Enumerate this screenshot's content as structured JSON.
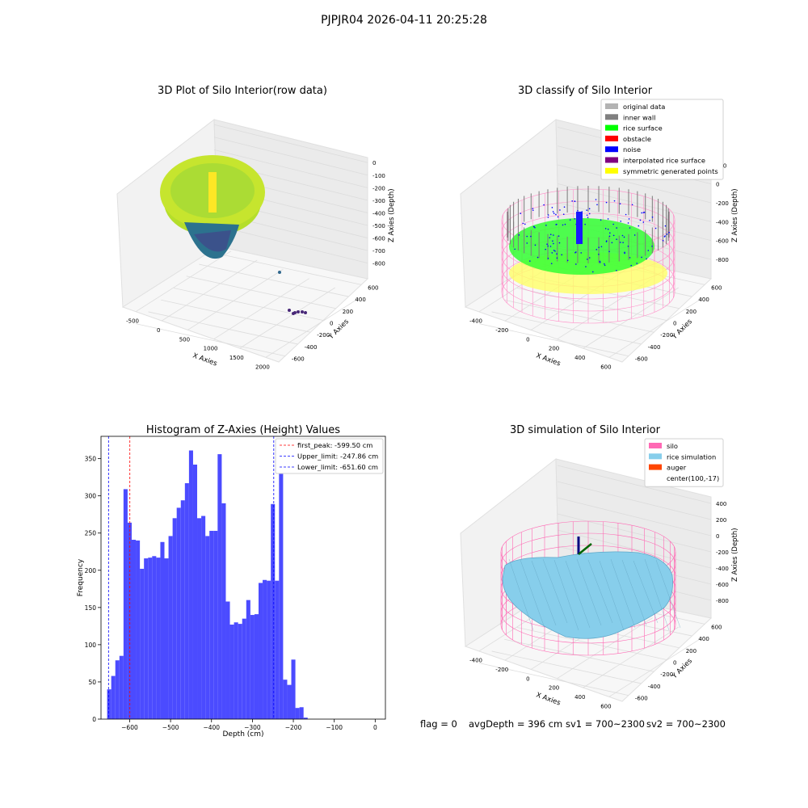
{
  "suptitle": "PJPJR04 2026-04-11 20:25:28",
  "panels": {
    "raw": {
      "title": "3D Plot of Silo Interior(row data)",
      "xlabel": "X Axies",
      "ylabel": "Y Axies",
      "zlabel": "Z Axies (Depth)",
      "xticks": [
        "-500",
        "0",
        "500",
        "1000",
        "1500",
        "2000"
      ],
      "yticks": [
        "600",
        "400",
        "200",
        "0",
        "-200",
        "-400",
        "-600"
      ],
      "zticks": [
        "0",
        "-100",
        "-200",
        "-300",
        "-400",
        "-500",
        "-600",
        "-700",
        "-800"
      ]
    },
    "classify": {
      "title": "3D classify of Silo Interior",
      "xlabel": "X Axies",
      "ylabel": "Y Axies",
      "zlabel": "Z Axies (Depth)",
      "xticks": [
        "-400",
        "-200",
        "0",
        "200",
        "400",
        "600"
      ],
      "yticks": [
        "600",
        "400",
        "200",
        "0",
        "-200",
        "-400",
        "-600"
      ],
      "zticks": [
        "200",
        "0",
        "-200",
        "-400",
        "-600",
        "-800"
      ],
      "zticks_top": "00",
      "legend": [
        {
          "label": "original data",
          "color": "#b3b3b3"
        },
        {
          "label": "inner wall",
          "color": "#808080"
        },
        {
          "label": "rice surface",
          "color": "#00ff00"
        },
        {
          "label": "obstacle",
          "color": "#ff0000"
        },
        {
          "label": "noise",
          "color": "#0000ff"
        },
        {
          "label": "interpolated rice surface",
          "color": "#800080"
        },
        {
          "label": "symmetric generated points",
          "color": "#ffff00"
        }
      ]
    },
    "simulation": {
      "title": "3D simulation of Silo Interior",
      "xlabel": "X Axies",
      "ylabel": "Y Axies",
      "zlabel": "Z Axies (Depth)",
      "xticks": [
        "-400",
        "-200",
        "0",
        "200",
        "400",
        "600"
      ],
      "yticks": [
        "600",
        "400",
        "200",
        "0",
        "-200",
        "-400",
        "-600"
      ],
      "zticks": [
        "400",
        "200",
        "0",
        "-200",
        "-400",
        "-600",
        "-800"
      ],
      "legend": [
        {
          "label": "silo",
          "color": "#ff69b4"
        },
        {
          "label": "rice simulation",
          "color": "#87ceeb"
        },
        {
          "label": "auger",
          "color": "#ff4500"
        },
        {
          "label": "center(100,-17)",
          "color": ""
        }
      ]
    }
  },
  "status": {
    "flag": "flag = 0",
    "avg_depth": "avgDepth = 396 cm",
    "sv1": "sv1 = 700~2300",
    "sv2": "sv2 = 700~2300"
  },
  "chart_data": {
    "type": "bar",
    "title": "Histogram of Z-Axies (Height) Values",
    "xlabel": "Depth (cm)",
    "ylabel": "Frequency",
    "bin_start": -655,
    "bin_width": 10,
    "values": [
      40,
      58,
      79,
      85,
      309,
      264,
      241,
      240,
      202,
      216,
      217,
      219,
      217,
      238,
      216,
      246,
      270,
      284,
      294,
      317,
      361,
      342,
      270,
      273,
      246,
      253,
      253,
      356,
      290,
      158,
      127,
      130,
      128,
      135,
      160,
      140,
      141,
      183,
      187,
      186,
      289,
      186,
      352,
      53,
      46,
      80,
      15,
      16,
      2
    ],
    "xlim": [
      -670,
      25
    ],
    "ylim": [
      0,
      380
    ],
    "xticks": [
      -600,
      -500,
      -400,
      -300,
      -200,
      -100,
      0
    ],
    "yticks": [
      0,
      50,
      100,
      150,
      200,
      250,
      300,
      350
    ],
    "bar_color": "#4b4bff",
    "vlines": [
      {
        "name": "first_peak: -599.50 cm",
        "x": -599.5,
        "color": "#ff0000"
      },
      {
        "name": "Upper_limit: -247.86 cm",
        "x": -247.86,
        "color": "#0000ff"
      },
      {
        "name": "Lower_limit: -651.60 cm",
        "x": -651.6,
        "color": "#0000ff"
      }
    ],
    "legend_position": "upper right"
  }
}
